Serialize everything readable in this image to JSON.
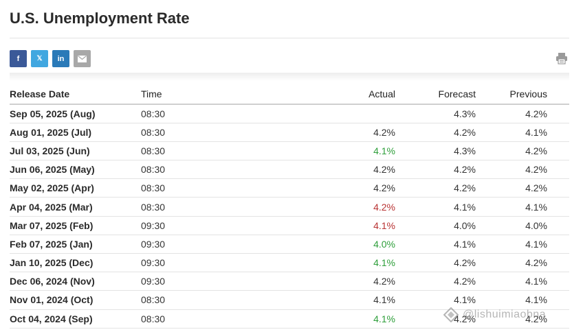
{
  "page": {
    "title": "U.S. Unemployment Rate"
  },
  "share": {
    "facebook_glyph": "f",
    "twitter_glyph": "𝕏",
    "linkedin_glyph": "in",
    "icons": [
      "facebook-icon",
      "twitter-icon",
      "linkedin-icon",
      "email-icon",
      "print-icon"
    ]
  },
  "colors": {
    "positive": "#2e9e3a",
    "negative": "#b83232",
    "facebook": "#3b5998",
    "twitter": "#41a7e0",
    "linkedin": "#2a7ab8"
  },
  "table": {
    "headers": {
      "release_date": "Release Date",
      "time": "Time",
      "actual": "Actual",
      "forecast": "Forecast",
      "previous": "Previous"
    },
    "rows": [
      {
        "date": "Sep 05, 2025 (Aug)",
        "time": "08:30",
        "actual": "",
        "actual_trend": "",
        "forecast": "4.3%",
        "previous": "4.2%"
      },
      {
        "date": "Aug 01, 2025 (Jul)",
        "time": "08:30",
        "actual": "4.2%",
        "actual_trend": "",
        "forecast": "4.2%",
        "previous": "4.1%"
      },
      {
        "date": "Jul 03, 2025 (Jun)",
        "time": "08:30",
        "actual": "4.1%",
        "actual_trend": "green",
        "forecast": "4.3%",
        "previous": "4.2%"
      },
      {
        "date": "Jun 06, 2025 (May)",
        "time": "08:30",
        "actual": "4.2%",
        "actual_trend": "",
        "forecast": "4.2%",
        "previous": "4.2%"
      },
      {
        "date": "May 02, 2025 (Apr)",
        "time": "08:30",
        "actual": "4.2%",
        "actual_trend": "",
        "forecast": "4.2%",
        "previous": "4.2%"
      },
      {
        "date": "Apr 04, 2025 (Mar)",
        "time": "08:30",
        "actual": "4.2%",
        "actual_trend": "red",
        "forecast": "4.1%",
        "previous": "4.1%"
      },
      {
        "date": "Mar 07, 2025 (Feb)",
        "time": "09:30",
        "actual": "4.1%",
        "actual_trend": "red",
        "forecast": "4.0%",
        "previous": "4.0%"
      },
      {
        "date": "Feb 07, 2025 (Jan)",
        "time": "09:30",
        "actual": "4.0%",
        "actual_trend": "green",
        "forecast": "4.1%",
        "previous": "4.1%"
      },
      {
        "date": "Jan 10, 2025 (Dec)",
        "time": "09:30",
        "actual": "4.1%",
        "actual_trend": "green",
        "forecast": "4.2%",
        "previous": "4.2%"
      },
      {
        "date": "Dec 06, 2024 (Nov)",
        "time": "09:30",
        "actual": "4.2%",
        "actual_trend": "",
        "forecast": "4.2%",
        "previous": "4.1%"
      },
      {
        "date": "Nov 01, 2024 (Oct)",
        "time": "08:30",
        "actual": "4.1%",
        "actual_trend": "",
        "forecast": "4.1%",
        "previous": "4.1%"
      },
      {
        "date": "Oct 04, 2024 (Sep)",
        "time": "08:30",
        "actual": "4.1%",
        "actual_trend": "green",
        "forecast": "4.2%",
        "previous": "4.2%"
      }
    ]
  },
  "watermark": {
    "text": "@lishuimiaobna"
  }
}
